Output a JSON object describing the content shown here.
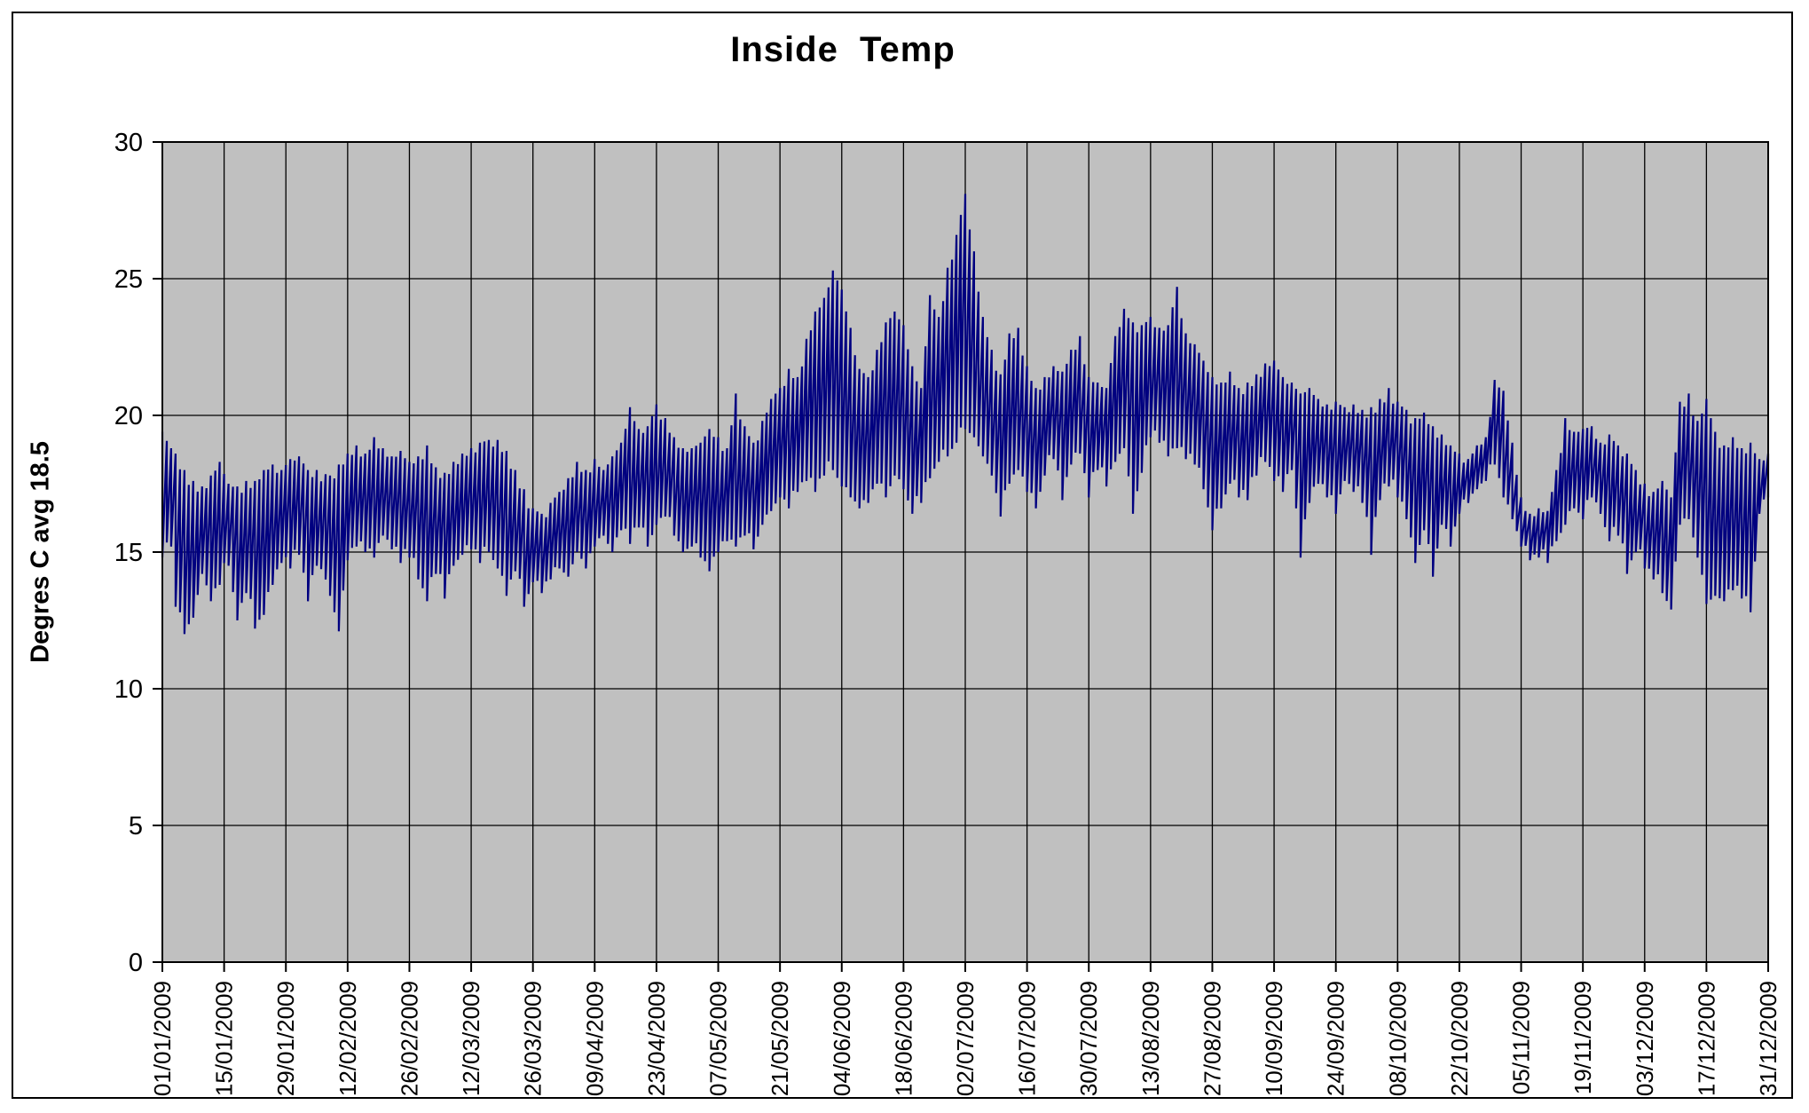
{
  "chart_data": {
    "type": "line",
    "title": "Inside  Temp",
    "ylabel": "Degres C avg 18.5",
    "xlabel": "",
    "series_name": "Inside Temp",
    "series_color": "#000080",
    "plot_bg_color": "#c0c0c0",
    "grid_color": "#000000",
    "grid": true,
    "legend": "none",
    "ylim": [
      0,
      30
    ],
    "y_ticks": [
      0,
      5,
      10,
      15,
      20,
      25,
      30
    ],
    "x_tick_interval_days": 14,
    "days_total": 365,
    "x_ticklabels": [
      "01/01/2009",
      "15/01/2009",
      "29/01/2009",
      "12/02/2009",
      "26/02/2009",
      "12/03/2009",
      "26/03/2009",
      "09/04/2009",
      "23/04/2009",
      "07/05/2009",
      "21/05/2009",
      "04/06/2009",
      "18/06/2009",
      "02/07/2009",
      "16/07/2009",
      "30/07/2009",
      "13/08/2009",
      "27/08/2009",
      "10/09/2009",
      "24/09/2009",
      "08/10/2009",
      "22/10/2009",
      "05/11/2009",
      "19/11/2009",
      "03/12/2009",
      "17/12/2009",
      "31/12/2009"
    ],
    "envelope_note": "daily low/high envelope [day,lo,hi] read from plot; day 0 = 01/01/2009",
    "envelope_points": [
      [
        0,
        14.8,
        19.4
      ],
      [
        2,
        15.2,
        18.8
      ],
      [
        3,
        13.0,
        18.6
      ],
      [
        5,
        12.0,
        18.0
      ],
      [
        7,
        12.6,
        17.6
      ],
      [
        9,
        14.2,
        17.4
      ],
      [
        11,
        13.2,
        17.8
      ],
      [
        13,
        13.8,
        18.3
      ],
      [
        15,
        14.5,
        17.5
      ],
      [
        17,
        12.5,
        17.4
      ],
      [
        19,
        13.5,
        17.6
      ],
      [
        21,
        12.2,
        17.6
      ],
      [
        23,
        12.7,
        18.0
      ],
      [
        25,
        13.8,
        18.2
      ],
      [
        27,
        14.6,
        18.0
      ],
      [
        29,
        14.4,
        18.4
      ],
      [
        31,
        14.9,
        18.5
      ],
      [
        33,
        13.2,
        18.0
      ],
      [
        35,
        14.5,
        18.0
      ],
      [
        38,
        13.4,
        17.8
      ],
      [
        40,
        12.1,
        18.2
      ],
      [
        42,
        14.7,
        18.6
      ],
      [
        44,
        15.2,
        18.9
      ],
      [
        46,
        15.0,
        18.6
      ],
      [
        48,
        14.8,
        19.2
      ],
      [
        50,
        15.6,
        18.8
      ],
      [
        52,
        15.1,
        18.5
      ],
      [
        54,
        14.6,
        18.7
      ],
      [
        56,
        14.8,
        18.3
      ],
      [
        58,
        14.0,
        18.5
      ],
      [
        60,
        13.2,
        18.9
      ],
      [
        62,
        14.2,
        18.1
      ],
      [
        64,
        13.3,
        17.9
      ],
      [
        66,
        14.5,
        18.3
      ],
      [
        68,
        14.9,
        18.6
      ],
      [
        70,
        15.1,
        18.8
      ],
      [
        72,
        14.6,
        19.0
      ],
      [
        74,
        15.0,
        19.1
      ],
      [
        76,
        14.4,
        19.1
      ],
      [
        78,
        13.4,
        18.7
      ],
      [
        80,
        14.3,
        18.0
      ],
      [
        82,
        13.0,
        17.3
      ],
      [
        84,
        13.9,
        16.6
      ],
      [
        86,
        13.5,
        16.4
      ],
      [
        88,
        14.0,
        16.8
      ],
      [
        90,
        14.4,
        17.2
      ],
      [
        92,
        14.1,
        17.7
      ],
      [
        94,
        15.0,
        18.3
      ],
      [
        96,
        14.4,
        18.0
      ],
      [
        98,
        15.2,
        18.4
      ],
      [
        100,
        15.6,
        18.0
      ],
      [
        102,
        15.0,
        18.5
      ],
      [
        104,
        15.8,
        19.0
      ],
      [
        106,
        15.3,
        20.3
      ],
      [
        108,
        15.9,
        19.5
      ],
      [
        110,
        15.2,
        19.6
      ],
      [
        112,
        16.0,
        20.4
      ],
      [
        114,
        16.3,
        19.9
      ],
      [
        116,
        15.6,
        19.2
      ],
      [
        118,
        15.0,
        18.8
      ],
      [
        120,
        15.2,
        18.8
      ],
      [
        122,
        14.8,
        19.0
      ],
      [
        124,
        14.3,
        19.5
      ],
      [
        126,
        15.0,
        19.2
      ],
      [
        128,
        15.4,
        18.8
      ],
      [
        130,
        15.2,
        20.8
      ],
      [
        132,
        15.6,
        19.6
      ],
      [
        134,
        15.1,
        19.0
      ],
      [
        136,
        16.0,
        19.8
      ],
      [
        138,
        16.5,
        20.6
      ],
      [
        140,
        17.0,
        21.0
      ],
      [
        142,
        16.6,
        21.7
      ],
      [
        144,
        17.2,
        21.4
      ],
      [
        146,
        17.6,
        22.8
      ],
      [
        148,
        17.2,
        23.8
      ],
      [
        150,
        17.8,
        24.3
      ],
      [
        152,
        18.0,
        25.3
      ],
      [
        154,
        17.4,
        24.6
      ],
      [
        156,
        17.0,
        23.2
      ],
      [
        158,
        16.6,
        21.7
      ],
      [
        160,
        16.8,
        21.4
      ],
      [
        162,
        17.5,
        22.4
      ],
      [
        164,
        17.0,
        23.4
      ],
      [
        166,
        17.8,
        23.8
      ],
      [
        168,
        17.3,
        23.3
      ],
      [
        170,
        16.4,
        21.8
      ],
      [
        172,
        16.8,
        21.0
      ],
      [
        174,
        17.7,
        24.4
      ],
      [
        176,
        18.3,
        23.6
      ],
      [
        178,
        18.5,
        25.4
      ],
      [
        180,
        19.0,
        26.6
      ],
      [
        182,
        19.5,
        28.1
      ],
      [
        184,
        19.2,
        26.0
      ],
      [
        186,
        18.5,
        23.6
      ],
      [
        188,
        17.8,
        22.4
      ],
      [
        190,
        16.3,
        21.5
      ],
      [
        192,
        17.5,
        23.0
      ],
      [
        194,
        18.0,
        23.2
      ],
      [
        196,
        17.2,
        21.8
      ],
      [
        198,
        16.6,
        21.0
      ],
      [
        200,
        17.8,
        21.4
      ],
      [
        202,
        18.4,
        21.8
      ],
      [
        204,
        16.9,
        21.6
      ],
      [
        206,
        18.2,
        22.4
      ],
      [
        208,
        18.6,
        22.9
      ],
      [
        210,
        17.0,
        21.4
      ],
      [
        212,
        18.0,
        21.2
      ],
      [
        214,
        17.4,
        21.0
      ],
      [
        216,
        18.3,
        22.9
      ],
      [
        218,
        18.8,
        23.9
      ],
      [
        220,
        16.4,
        23.4
      ],
      [
        222,
        17.9,
        23.3
      ],
      [
        224,
        19.2,
        23.6
      ],
      [
        226,
        19.0,
        23.2
      ],
      [
        228,
        18.5,
        23.3
      ],
      [
        230,
        18.8,
        24.7
      ],
      [
        232,
        18.4,
        23.0
      ],
      [
        234,
        18.2,
        22.6
      ],
      [
        236,
        17.3,
        22.0
      ],
      [
        238,
        15.8,
        21.4
      ],
      [
        240,
        16.6,
        21.2
      ],
      [
        242,
        17.5,
        21.6
      ],
      [
        244,
        17.0,
        21.0
      ],
      [
        246,
        16.9,
        21.2
      ],
      [
        248,
        17.8,
        21.5
      ],
      [
        250,
        18.3,
        21.9
      ],
      [
        252,
        17.6,
        22.0
      ],
      [
        254,
        17.2,
        21.4
      ],
      [
        256,
        18.0,
        21.2
      ],
      [
        258,
        14.8,
        20.8
      ],
      [
        260,
        16.8,
        21.0
      ],
      [
        262,
        17.5,
        20.6
      ],
      [
        264,
        17.0,
        20.4
      ],
      [
        266,
        16.4,
        20.5
      ],
      [
        268,
        17.6,
        20.3
      ],
      [
        270,
        17.2,
        20.4
      ],
      [
        272,
        16.8,
        20.2
      ],
      [
        274,
        14.9,
        20.3
      ],
      [
        276,
        16.9,
        20.6
      ],
      [
        278,
        17.4,
        21.0
      ],
      [
        280,
        17.0,
        20.5
      ],
      [
        282,
        16.2,
        20.2
      ],
      [
        284,
        14.6,
        19.9
      ],
      [
        286,
        15.8,
        20.1
      ],
      [
        288,
        14.1,
        19.6
      ],
      [
        290,
        16.0,
        19.3
      ],
      [
        292,
        15.2,
        18.9
      ],
      [
        294,
        16.4,
        18.6
      ],
      [
        296,
        16.8,
        18.4
      ],
      [
        298,
        17.3,
        18.9
      ],
      [
        300,
        17.6,
        19.2
      ],
      [
        302,
        18.2,
        21.3
      ],
      [
        304,
        17.0,
        20.9
      ],
      [
        306,
        16.2,
        19.0
      ],
      [
        308,
        15.2,
        17.0
      ],
      [
        310,
        14.7,
        16.4
      ],
      [
        312,
        14.8,
        16.6
      ],
      [
        314,
        14.6,
        16.5
      ],
      [
        316,
        15.4,
        18.0
      ],
      [
        318,
        16.0,
        19.9
      ],
      [
        320,
        16.6,
        19.4
      ],
      [
        322,
        16.2,
        19.5
      ],
      [
        324,
        17.0,
        19.6
      ],
      [
        326,
        16.4,
        19.0
      ],
      [
        328,
        15.4,
        19.3
      ],
      [
        330,
        15.6,
        18.9
      ],
      [
        332,
        14.2,
        18.6
      ],
      [
        334,
        15.0,
        18.0
      ],
      [
        336,
        14.4,
        17.5
      ],
      [
        338,
        14.0,
        17.2
      ],
      [
        340,
        13.5,
        17.6
      ],
      [
        342,
        12.9,
        17.0
      ],
      [
        344,
        16.0,
        20.5
      ],
      [
        346,
        16.2,
        20.8
      ],
      [
        348,
        14.8,
        19.8
      ],
      [
        350,
        13.1,
        20.6
      ],
      [
        352,
        13.4,
        19.4
      ],
      [
        354,
        13.2,
        18.9
      ],
      [
        356,
        13.6,
        19.2
      ],
      [
        358,
        13.3,
        18.8
      ],
      [
        360,
        12.8,
        19.0
      ],
      [
        362,
        16.4,
        18.4
      ],
      [
        364,
        17.0,
        18.6
      ]
    ]
  }
}
